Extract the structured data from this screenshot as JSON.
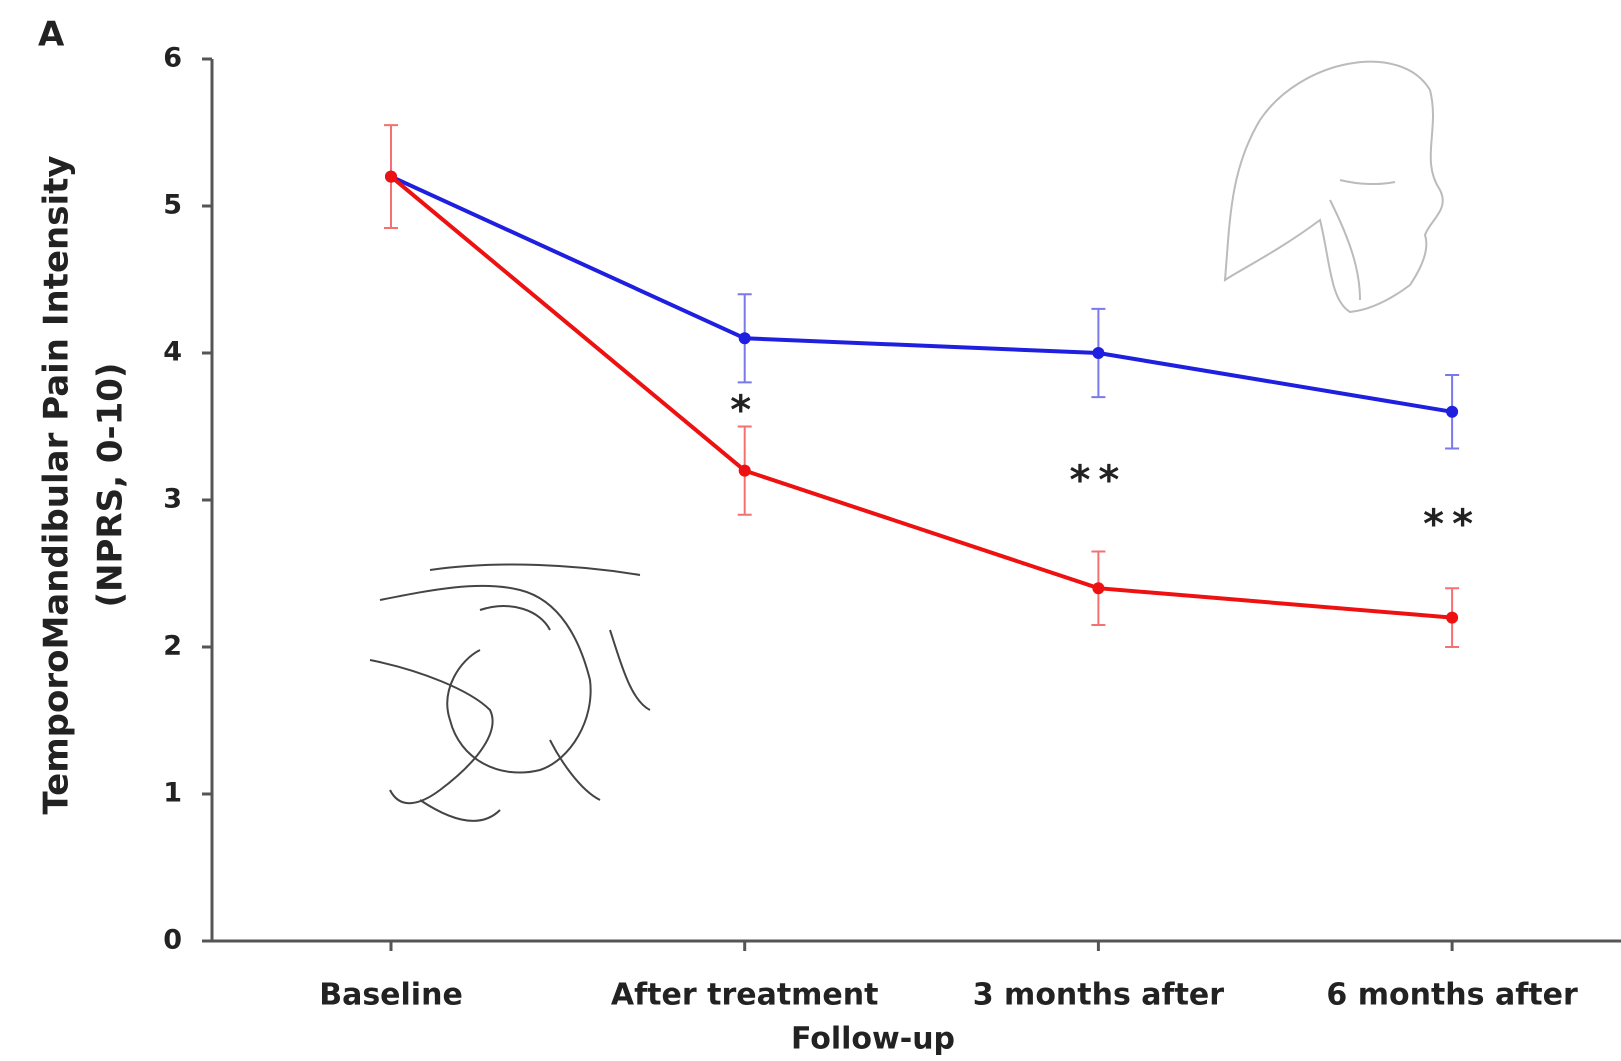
{
  "chart_data": {
    "type": "line",
    "panel_label": "A",
    "y_label": [
      "TemporoMandibular Pain Intensity",
      "(NPRS, 0-10)"
    ],
    "x_label": "Follow-up",
    "categories": [
      "Baseline",
      "After treatment",
      "3 months after",
      "6 months after"
    ],
    "series": [
      {
        "color": "#1f1fe0",
        "values": [
          5.2,
          4.1,
          4.0,
          3.6
        ],
        "errors": [
          null,
          0.3,
          0.3,
          0.25
        ]
      },
      {
        "color": "#ee1111",
        "values": [
          5.2,
          3.2,
          2.4,
          2.2
        ],
        "errors": [
          0.35,
          0.3,
          0.25,
          0.2
        ]
      }
    ],
    "annotations": [
      null,
      "*",
      "**",
      "**"
    ],
    "ylim": [
      0,
      6
    ],
    "yticks": [
      0,
      1,
      2,
      3,
      4,
      5,
      6
    ],
    "grid": false
  }
}
